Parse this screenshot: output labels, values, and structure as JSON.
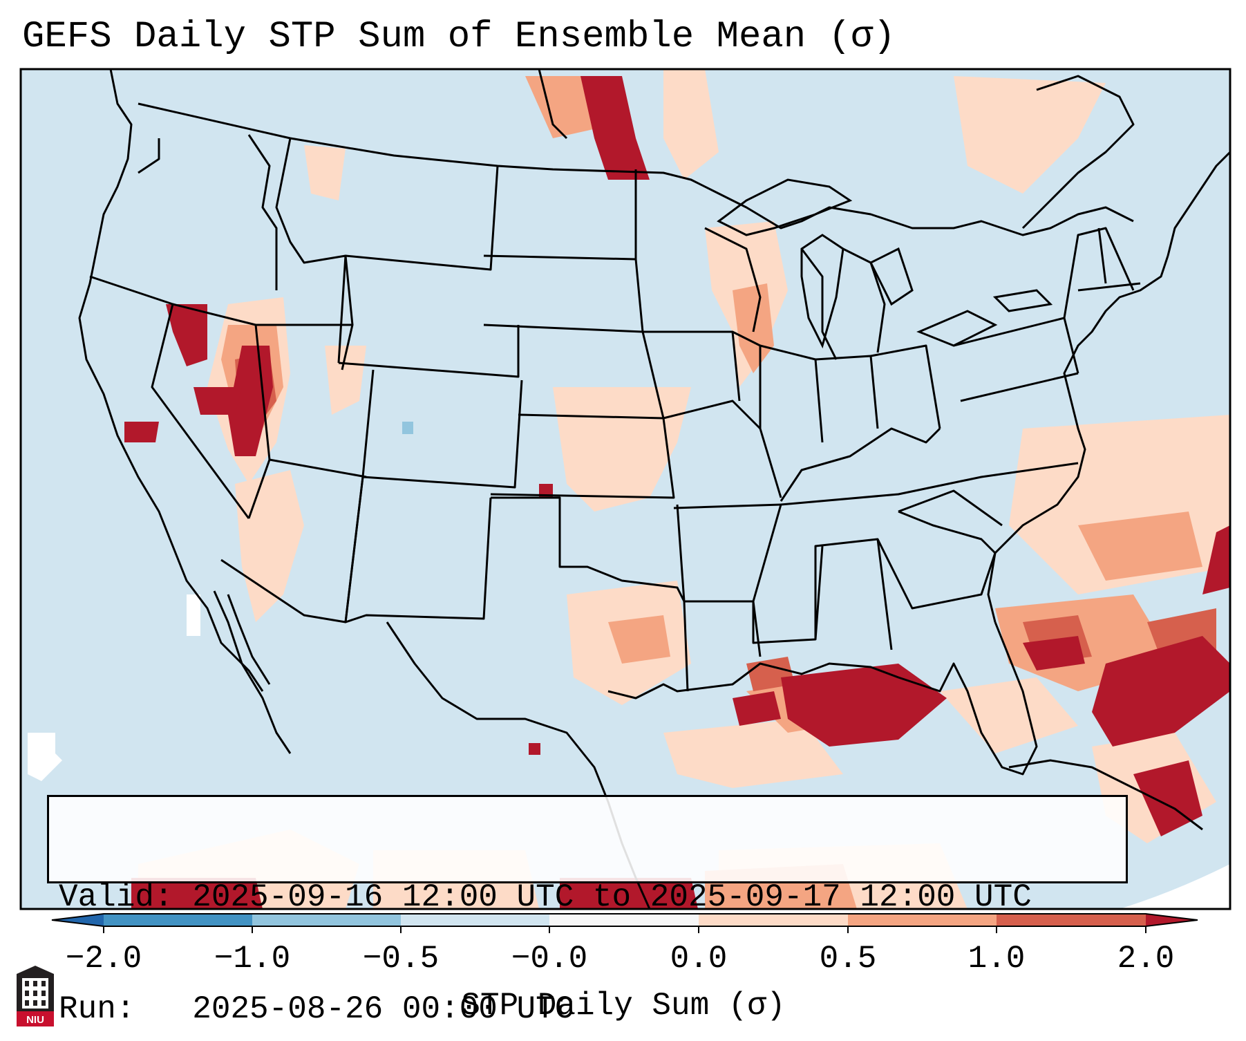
{
  "title": "GEFS Daily STP Sum of Ensemble Mean (σ)",
  "info": {
    "valid_line": "Valid: 2025-09-16 12:00 UTC to 2025-09-17 12:00 UTC",
    "run_line": "Run:   2025-08-26 00:00 UTC"
  },
  "colorbar": {
    "label": "STP Daily Sum (σ)",
    "ticks": [
      "−2.0",
      "−1.0",
      "−0.5",
      "−0.0",
      "0.0",
      "0.5",
      "1.0",
      "2.0"
    ],
    "colors": {
      "under": "#2166ac",
      "bin_neg2_neg1": "#4393c3",
      "bin_neg1_neg05": "#92c5de",
      "bin_neg05_neg0": "#d1e5f0",
      "bin_zero": "#f7f7f7",
      "bin_0_05": "#fddbc7",
      "bin_05_1": "#f4a582",
      "bin_1_2": "#d6604d",
      "over": "#b2182b"
    }
  },
  "map": {
    "background_color": "#d1e5f0",
    "border_color": "#000000"
  },
  "logo": {
    "text": "NIU"
  }
}
